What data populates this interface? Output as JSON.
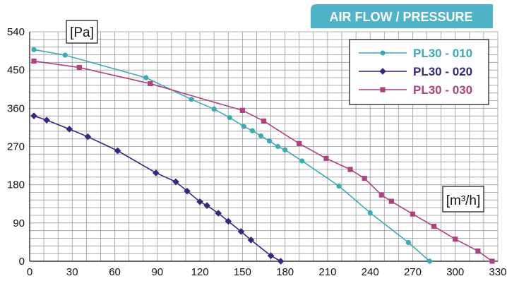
{
  "header": {
    "title": "AIR FLOW / PRESSURE",
    "color": "#4fb4c8"
  },
  "chart_data": {
    "type": "line",
    "title": "AIR FLOW / PRESSURE",
    "y_unit": "[Pa]",
    "x_unit": "[m³/h]",
    "xlim": [
      0,
      330
    ],
    "ylim": [
      0,
      540
    ],
    "x_ticks": [
      0,
      30,
      60,
      90,
      120,
      150,
      180,
      210,
      240,
      270,
      300,
      330
    ],
    "y_ticks": [
      0,
      90,
      180,
      270,
      360,
      450,
      540
    ],
    "grid": true,
    "legend_position": "top-right",
    "series": [
      {
        "name": "PL30 - 010",
        "color": "#3aabb5",
        "marker": "circle",
        "x": [
          3,
          25,
          82,
          114,
          130,
          141,
          151,
          157,
          163,
          169,
          175,
          180,
          192,
          218,
          240,
          267,
          282
        ],
        "y": [
          498,
          485,
          432,
          381,
          358,
          338,
          317,
          307,
          295,
          283,
          270,
          262,
          236,
          177,
          114,
          44,
          0
        ]
      },
      {
        "name": "PL30 - 020",
        "color": "#2e2b80",
        "marker": "diamond",
        "x": [
          3,
          12,
          28,
          41,
          62,
          89,
          103,
          111,
          120,
          125,
          133,
          140,
          149,
          156,
          170,
          177
        ],
        "y": [
          342,
          332,
          311,
          293,
          260,
          208,
          187,
          165,
          140,
          131,
          113,
          94,
          70,
          50,
          13,
          0
        ]
      },
      {
        "name": "PL30 - 030",
        "color": "#b1407e",
        "marker": "square",
        "x": [
          3,
          35,
          85,
          150,
          165,
          190,
          209,
          226,
          236,
          248,
          255,
          270,
          285,
          300,
          316,
          326
        ],
        "y": [
          471,
          456,
          418,
          355,
          330,
          277,
          242,
          216,
          195,
          156,
          141,
          111,
          82,
          52,
          24,
          0
        ]
      }
    ]
  }
}
